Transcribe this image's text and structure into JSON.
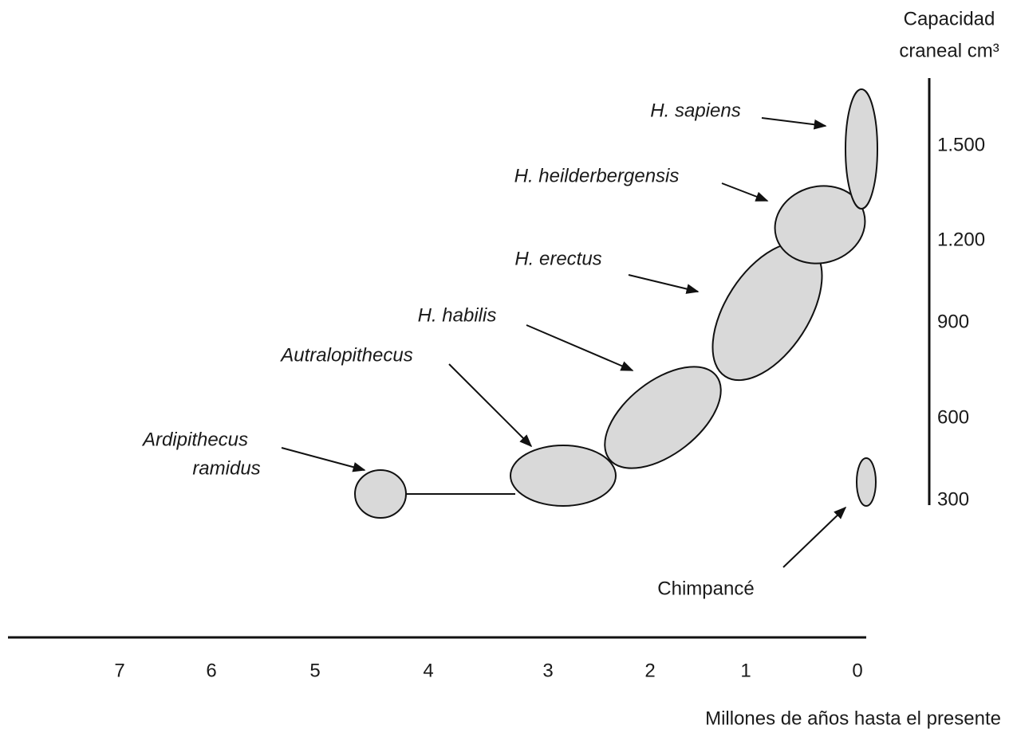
{
  "axis": {
    "y_title": [
      "Capacidad",
      "craneal cm³"
    ],
    "y_ticks": [
      "1.500",
      "1.200",
      "900",
      "600",
      "300"
    ],
    "x_ticks": [
      "7",
      "6",
      "5",
      "4",
      "3",
      "2",
      "1",
      "0"
    ],
    "x_title": "Millones de años hasta el presente"
  },
  "labels": {
    "sapiens": "H. sapiens",
    "heidelbergensis": "H. heilderbergensis",
    "erectus": "H. erectus",
    "habilis": "H. habilis",
    "australopithecus": "Autralopithecus",
    "ardipithecus": [
      "Ardipithecus",
      "ramidus"
    ],
    "chimp": "Chimpancé"
  }
}
